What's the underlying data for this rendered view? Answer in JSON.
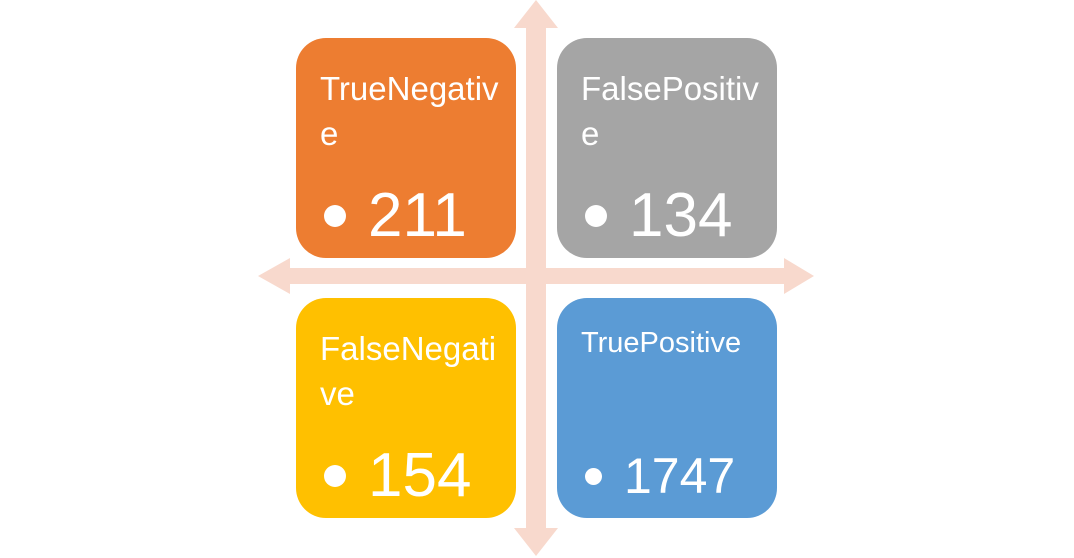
{
  "colors": {
    "true_negative": "#ed7d31",
    "false_positive": "#a5a5a5",
    "false_negative": "#ffc000",
    "true_positive": "#5b9bd5",
    "axis": "#f8d9cd",
    "text": "#ffffff"
  },
  "quadrants": {
    "true_negative": {
      "label": "TrueNegative",
      "value": "211"
    },
    "false_positive": {
      "label": "FalsePositive",
      "value": "134"
    },
    "false_negative": {
      "label": "FalseNegative",
      "value": "154"
    },
    "true_positive": {
      "label": "TruePositive",
      "value": "1747"
    }
  }
}
